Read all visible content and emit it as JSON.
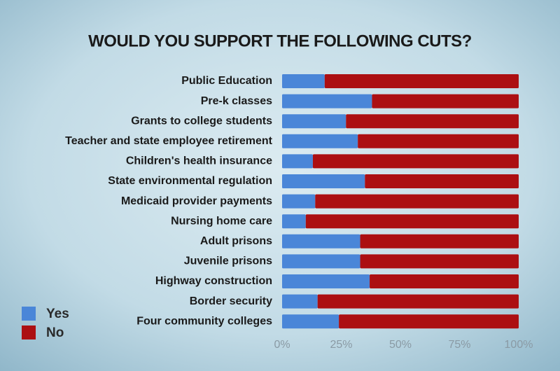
{
  "chart_data": {
    "type": "bar",
    "stacked": true,
    "title": "WOULD YOU SUPPORT THE FOLLOWING CUTS?",
    "categories": [
      "Public Education",
      "Pre-k classes",
      "Grants to college students",
      "Teacher and state employee retirement",
      "Children's health insurance",
      "State environmental regulation",
      "Medicaid provider payments",
      "Nursing home care",
      "Adult prisons",
      "Juvenile prisons",
      "Highway construction",
      "Border security",
      "Four community colleges"
    ],
    "series": [
      {
        "name": "Yes",
        "color": "#4a86d8",
        "values": [
          18,
          38,
          27,
          32,
          13,
          35,
          14,
          10,
          33,
          33,
          37,
          15,
          24
        ]
      },
      {
        "name": "No",
        "color": "#ac0f12",
        "values": [
          82,
          62,
          73,
          68,
          87,
          65,
          86,
          90,
          67,
          67,
          63,
          85,
          76
        ]
      }
    ],
    "xlim": [
      0,
      100
    ],
    "xticks": [
      {
        "value": 0,
        "label": "0%"
      },
      {
        "value": 25,
        "label": "25%"
      },
      {
        "value": 50,
        "label": "50%"
      },
      {
        "value": 75,
        "label": "75%"
      },
      {
        "value": 100,
        "label": "100%"
      }
    ]
  }
}
